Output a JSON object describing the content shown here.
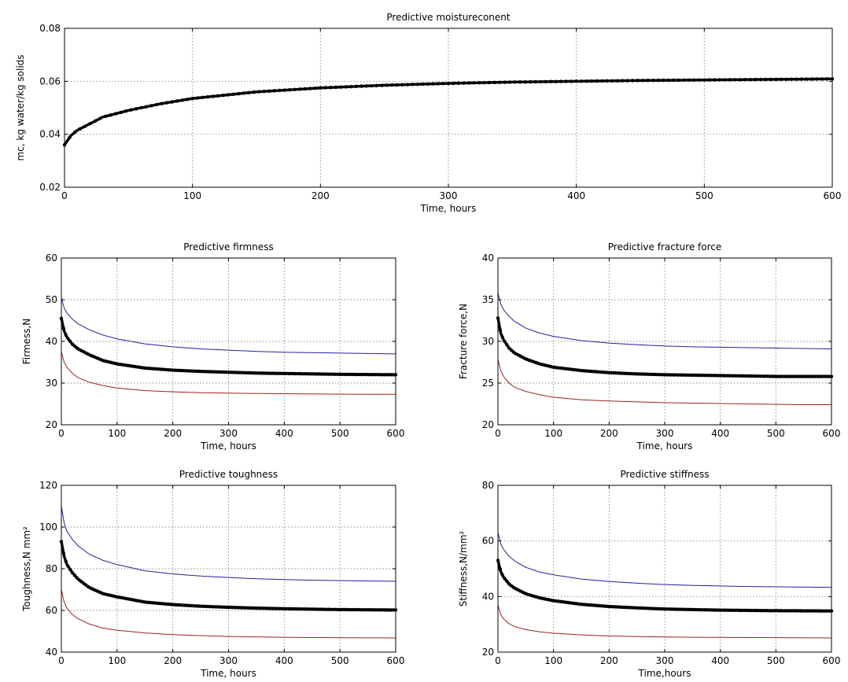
{
  "chart_data": [
    {
      "type": "line",
      "title": "Predictive moistureconent",
      "xlabel": "Time, hours",
      "ylabel": "mc, kg water/kg solids",
      "xlim": [
        0,
        600
      ],
      "ylim": [
        0.02,
        0.08
      ],
      "xticks": [
        "0",
        "100",
        "200",
        "300",
        "400",
        "500",
        "600"
      ],
      "yticks": [
        "0.02",
        "0.04",
        "0.06",
        "0.08"
      ],
      "grid": true,
      "x": [
        0,
        5,
        10,
        20,
        30,
        50,
        75,
        100,
        150,
        200,
        250,
        300,
        350,
        400,
        450,
        500,
        550,
        600
      ],
      "series": [
        {
          "color": "#000000",
          "style": "thick-markers",
          "values": [
            0.036,
            0.0395,
            0.0415,
            0.044,
            0.0465,
            0.049,
            0.0515,
            0.0535,
            0.056,
            0.0575,
            0.0585,
            0.0592,
            0.0597,
            0.06,
            0.0603,
            0.0605,
            0.0607,
            0.0609
          ]
        }
      ]
    },
    {
      "type": "line",
      "title": "Predictive firmness",
      "xlabel": "Time, hours",
      "ylabel": "Firmess,N",
      "xlim": [
        0,
        600
      ],
      "ylim": [
        20,
        60
      ],
      "xticks": [
        "0",
        "100",
        "200",
        "300",
        "400",
        "500",
        "600"
      ],
      "yticks": [
        "20",
        "30",
        "40",
        "50",
        "60"
      ],
      "grid": true,
      "x": [
        0,
        5,
        10,
        20,
        30,
        50,
        75,
        100,
        150,
        200,
        250,
        300,
        350,
        400,
        450,
        500,
        550,
        600
      ],
      "series": [
        {
          "color": "#2020a0",
          "style": "thin",
          "values": [
            50.5,
            48,
            46.8,
            45.3,
            44.2,
            42.8,
            41.5,
            40.6,
            39.4,
            38.7,
            38.2,
            37.9,
            37.6,
            37.4,
            37.3,
            37.2,
            37.1,
            37
          ]
        },
        {
          "color": "#000000",
          "style": "thick-markers",
          "values": [
            45.5,
            42.5,
            41,
            39.3,
            38.2,
            36.8,
            35.4,
            34.6,
            33.6,
            33.1,
            32.8,
            32.6,
            32.4,
            32.3,
            32.2,
            32.1,
            32.05,
            32
          ]
        },
        {
          "color": "#a02020",
          "style": "thin",
          "values": [
            37.5,
            35,
            33.8,
            32.3,
            31.3,
            30.2,
            29.4,
            28.8,
            28.2,
            27.9,
            27.7,
            27.6,
            27.5,
            27.45,
            27.4,
            27.35,
            27.3,
            27.3
          ]
        }
      ]
    },
    {
      "type": "line",
      "title": "Predictive fracture force",
      "xlabel": "Time, hours",
      "ylabel": "Fracture force,N",
      "xlim": [
        0,
        600
      ],
      "ylim": [
        20,
        40
      ],
      "xticks": [
        "0",
        "100",
        "200",
        "300",
        "400",
        "500",
        "600"
      ],
      "yticks": [
        "20",
        "25",
        "30",
        "35",
        "40"
      ],
      "grid": true,
      "x": [
        0,
        5,
        10,
        20,
        30,
        50,
        75,
        100,
        150,
        200,
        250,
        300,
        350,
        400,
        450,
        500,
        550,
        600
      ],
      "series": [
        {
          "color": "#2020a0",
          "style": "thin",
          "values": [
            35.8,
            34.5,
            33.8,
            33,
            32.4,
            31.6,
            31,
            30.6,
            30.1,
            29.8,
            29.6,
            29.45,
            29.35,
            29.3,
            29.25,
            29.2,
            29.15,
            29.1
          ]
        },
        {
          "color": "#000000",
          "style": "thick-markers",
          "values": [
            32.8,
            31,
            30.2,
            29.2,
            28.6,
            27.9,
            27.3,
            26.9,
            26.5,
            26.25,
            26.1,
            26,
            25.95,
            25.9,
            25.85,
            25.8,
            25.8,
            25.8
          ]
        },
        {
          "color": "#a02020",
          "style": "thin",
          "values": [
            27.8,
            26.5,
            25.8,
            25,
            24.5,
            24,
            23.6,
            23.3,
            23,
            22.85,
            22.75,
            22.65,
            22.6,
            22.55,
            22.5,
            22.45,
            22.4,
            22.4
          ]
        }
      ]
    },
    {
      "type": "line",
      "title": "Predictive toughness",
      "xlabel": "Time, hours",
      "ylabel": "Toughness,N mm²",
      "xlim": [
        0,
        600
      ],
      "ylim": [
        40,
        120
      ],
      "xticks": [
        "0",
        "100",
        "200",
        "300",
        "400",
        "500",
        "600"
      ],
      "yticks": [
        "40",
        "60",
        "80",
        "100",
        "120"
      ],
      "grid": true,
      "x": [
        0,
        5,
        10,
        20,
        30,
        50,
        75,
        100,
        150,
        200,
        250,
        300,
        350,
        400,
        450,
        500,
        550,
        600
      ],
      "series": [
        {
          "color": "#2020a0",
          "style": "thin",
          "values": [
            110,
            102,
            98,
            94,
            91,
            87,
            84,
            82,
            79,
            77.5,
            76.5,
            75.8,
            75.2,
            74.8,
            74.5,
            74.3,
            74.1,
            74
          ]
        },
        {
          "color": "#000000",
          "style": "thick-markers",
          "values": [
            93,
            86,
            82,
            78,
            75,
            71,
            68,
            66.5,
            64,
            62.8,
            62,
            61.5,
            61.1,
            60.8,
            60.6,
            60.4,
            60.3,
            60.2
          ]
        },
        {
          "color": "#a02020",
          "style": "thin",
          "values": [
            70,
            64,
            61,
            58,
            56,
            53.5,
            51.5,
            50.5,
            49.2,
            48.4,
            47.9,
            47.5,
            47.3,
            47.1,
            47,
            46.9,
            46.85,
            46.8
          ]
        }
      ]
    },
    {
      "type": "line",
      "title": "Predictive stiffness",
      "xlabel": "Time,hours",
      "ylabel": "Stiffness,N/mm²",
      "xlim": [
        0,
        600
      ],
      "ylim": [
        20,
        80
      ],
      "xticks": [
        "0",
        "100",
        "200",
        "300",
        "400",
        "500",
        "600"
      ],
      "yticks": [
        "20",
        "40",
        "60",
        "80"
      ],
      "grid": true,
      "x": [
        0,
        5,
        10,
        20,
        30,
        50,
        75,
        100,
        150,
        200,
        250,
        300,
        350,
        400,
        450,
        500,
        550,
        600
      ],
      "series": [
        {
          "color": "#2020a0",
          "style": "thin",
          "values": [
            63,
            59,
            57,
            54.5,
            52.8,
            50.5,
            48.8,
            47.8,
            46.3,
            45.4,
            44.8,
            44.3,
            44,
            43.8,
            43.6,
            43.5,
            43.4,
            43.3
          ]
        },
        {
          "color": "#000000",
          "style": "thick-markers",
          "values": [
            53,
            49,
            47,
            44.5,
            43,
            41,
            39.5,
            38.5,
            37.2,
            36.4,
            35.9,
            35.5,
            35.3,
            35.1,
            35,
            34.9,
            34.85,
            34.8
          ]
        },
        {
          "color": "#a02020",
          "style": "thin",
          "values": [
            37,
            33.5,
            32,
            30.2,
            29.2,
            28.1,
            27.3,
            26.8,
            26.2,
            25.8,
            25.6,
            25.45,
            25.35,
            25.3,
            25.25,
            25.2,
            25.15,
            25.1
          ]
        }
      ]
    }
  ]
}
